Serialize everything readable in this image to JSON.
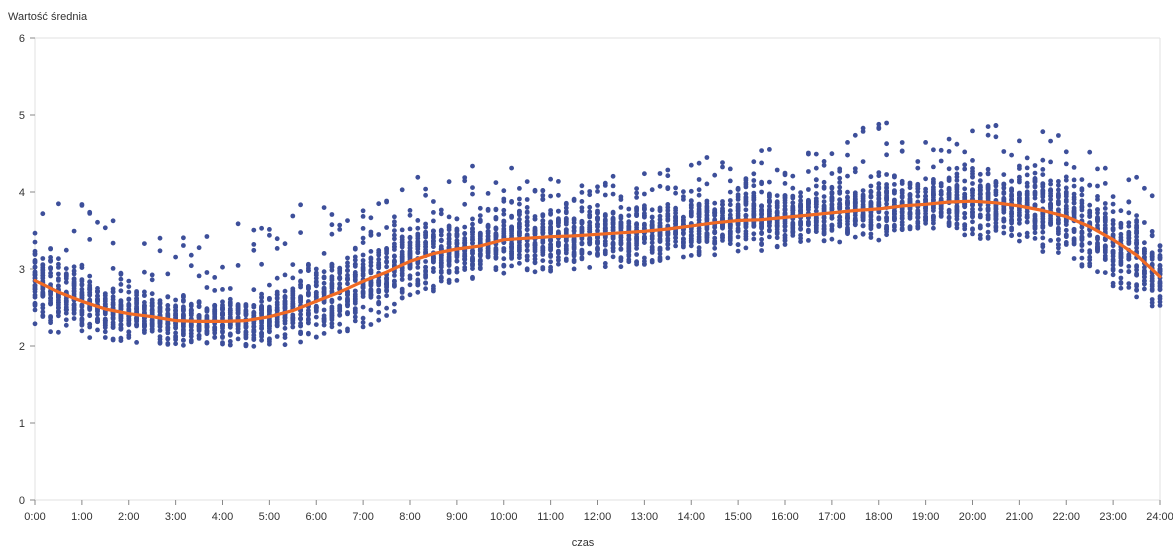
{
  "chart_data": {
    "type": "scatter",
    "ylabel": "Wartość średnia",
    "xlabel": "czas",
    "xlim": [
      0,
      24
    ],
    "ylim": [
      0,
      6
    ],
    "x_ticks": [
      "0:00",
      "1:00",
      "2:00",
      "3:00",
      "4:00",
      "5:00",
      "6:00",
      "7:00",
      "8:00",
      "9:00",
      "10:00",
      "11:00",
      "12:00",
      "13:00",
      "14:00",
      "15:00",
      "16:00",
      "17:00",
      "18:00",
      "19:00",
      "20:00",
      "21:00",
      "22:00",
      "23:00",
      "24:00"
    ],
    "y_ticks": [
      "0",
      "1",
      "2",
      "3",
      "4",
      "5",
      "6"
    ],
    "grid": false,
    "point_color": "#3d4f9a",
    "line_color": "#f06a24",
    "trend": {
      "x": [
        0,
        0.5,
        1,
        1.5,
        2,
        2.5,
        3,
        3.5,
        4,
        4.5,
        5,
        5.5,
        6,
        6.5,
        7,
        7.5,
        8,
        8.5,
        9,
        9.5,
        10,
        10.5,
        11,
        11.5,
        12,
        12.5,
        13,
        13.5,
        14,
        14.5,
        15,
        15.5,
        16,
        16.5,
        17,
        17.5,
        18,
        18.5,
        19,
        19.5,
        20,
        20.5,
        21,
        21.5,
        22,
        22.5,
        23,
        23.5,
        24
      ],
      "y": [
        2.85,
        2.7,
        2.58,
        2.48,
        2.42,
        2.38,
        2.33,
        2.32,
        2.32,
        2.33,
        2.38,
        2.46,
        2.58,
        2.7,
        2.84,
        2.96,
        3.1,
        3.2,
        3.26,
        3.3,
        3.38,
        3.4,
        3.42,
        3.43,
        3.45,
        3.47,
        3.49,
        3.52,
        3.56,
        3.6,
        3.63,
        3.64,
        3.67,
        3.7,
        3.73,
        3.76,
        3.78,
        3.82,
        3.84,
        3.87,
        3.88,
        3.86,
        3.82,
        3.76,
        3.68,
        3.55,
        3.38,
        3.18,
        2.9
      ]
    },
    "scatter_summary": {
      "x_hours": [
        0,
        1,
        2,
        3,
        4,
        5,
        6,
        7,
        8,
        9,
        10,
        11,
        12,
        13,
        14,
        15,
        16,
        17,
        18,
        19,
        20,
        21,
        22,
        23,
        24
      ],
      "y_min": [
        2.2,
        2.1,
        2.05,
        2.0,
        2.0,
        1.97,
        2.05,
        2.2,
        2.55,
        2.85,
        2.9,
        2.95,
        3.0,
        3.05,
        3.15,
        3.2,
        3.25,
        3.3,
        3.35,
        3.4,
        3.4,
        3.35,
        3.1,
        2.75,
        2.45
      ],
      "y_max": [
        4.0,
        4.0,
        3.65,
        3.5,
        3.4,
        4.0,
        3.8,
        3.9,
        4.2,
        4.4,
        4.35,
        4.2,
        4.2,
        4.25,
        4.45,
        4.65,
        4.55,
        4.7,
        5.0,
        4.9,
        4.9,
        4.85,
        4.75,
        4.5,
        3.9
      ]
    }
  }
}
